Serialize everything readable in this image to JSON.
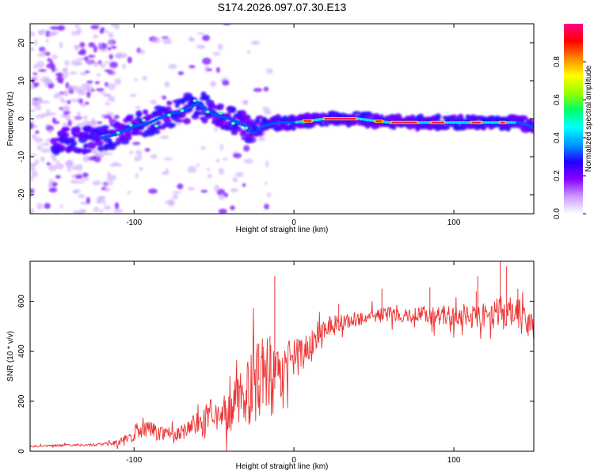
{
  "title": "S174.2026.097.07.30.E13",
  "chart_data": [
    {
      "type": "heatmap",
      "xlabel": "Height of straight line (km)",
      "ylabel": "Frequency (Hz)",
      "xlim": [
        -165,
        150
      ],
      "ylim": [
        -25,
        25
      ],
      "x_ticks": [
        -100,
        0,
        100
      ],
      "y_ticks": [
        -20,
        -10,
        0,
        10,
        20
      ],
      "colorbar": {
        "label": "Normalized spectral amplitude",
        "range": [
          0.0,
          1.0
        ],
        "ticks": [
          "0.0",
          "0.2",
          "0.4",
          "0.6",
          "0.8"
        ],
        "colors": [
          "#ffffff",
          "#cc99ff",
          "#8800ff",
          "#2200ff",
          "#0099ff",
          "#00ffff",
          "#00ff66",
          "#99ff00",
          "#ffff00",
          "#ff8800",
          "#ff0000",
          "#ff0088"
        ]
      },
      "ridge": {
        "x": [
          -145,
          -120,
          -110,
          -100,
          -90,
          -80,
          -70,
          -60,
          -50,
          -40,
          -30,
          -25,
          -20,
          -10,
          0,
          20,
          40,
          60,
          80,
          100,
          120,
          140,
          150
        ],
        "f": [
          -6,
          -5,
          -4,
          -2,
          -1,
          1,
          2,
          4,
          1,
          0,
          -2,
          -4,
          -2,
          -1,
          -1,
          0,
          0,
          -1,
          -1,
          -1,
          -1,
          -1,
          -2
        ]
      }
    },
    {
      "type": "line",
      "xlabel": "Height of straight line (km)",
      "ylabel": "SNR (10 * v/v)",
      "xlim": [
        -165,
        150
      ],
      "ylim": [
        0,
        760
      ],
      "x_ticks": [
        -100,
        0,
        100
      ],
      "y_ticks": [
        0,
        200,
        400,
        600
      ],
      "color": "#ee3333",
      "series": [
        {
          "name": "SNR",
          "x": [
            -165,
            -150,
            -140,
            -130,
            -120,
            -110,
            -105,
            -100,
            -95,
            -90,
            -85,
            -80,
            -75,
            -70,
            -65,
            -60,
            -55,
            -50,
            -45,
            -40,
            -35,
            -30,
            -25,
            -20,
            -15,
            -12,
            -10,
            -5,
            0,
            5,
            10,
            15,
            20,
            25,
            30,
            35,
            40,
            50,
            60,
            70,
            80,
            90,
            100,
            110,
            120,
            130,
            140,
            145,
            150
          ],
          "y": [
            20,
            22,
            25,
            25,
            28,
            35,
            50,
            60,
            80,
            95,
            70,
            80,
            60,
            75,
            100,
            110,
            130,
            120,
            150,
            160,
            200,
            230,
            260,
            300,
            280,
            250,
            300,
            340,
            370,
            390,
            420,
            470,
            500,
            510,
            515,
            520,
            530,
            540,
            550,
            545,
            545,
            545,
            540,
            540,
            540,
            555,
            555,
            520,
            490
          ],
          "noise": [
            4,
            4,
            4,
            4,
            6,
            12,
            18,
            22,
            28,
            32,
            30,
            30,
            28,
            30,
            40,
            50,
            60,
            55,
            70,
            80,
            110,
            130,
            150,
            170,
            170,
            150,
            110,
            90,
            80,
            70,
            60,
            50,
            45,
            40,
            35,
            30,
            30,
            30,
            30,
            30,
            35,
            40,
            40,
            40,
            45,
            70,
            60,
            50,
            70
          ],
          "spikes": [
            {
              "x": -12,
              "y": 700
            },
            {
              "x": -22,
              "y": 430
            },
            {
              "x": -15,
              "y": 460
            },
            {
              "x": -10,
              "y": 400
            },
            {
              "x": 28,
              "y": 590
            },
            {
              "x": 55,
              "y": 650
            },
            {
              "x": 85,
              "y": 655
            },
            {
              "x": 114,
              "y": 640
            },
            {
              "x": 115,
              "y": 700
            },
            {
              "x": 129,
              "y": 760
            },
            {
              "x": 133,
              "y": 740
            },
            {
              "x": 140,
              "y": 650
            }
          ]
        }
      ]
    }
  ]
}
